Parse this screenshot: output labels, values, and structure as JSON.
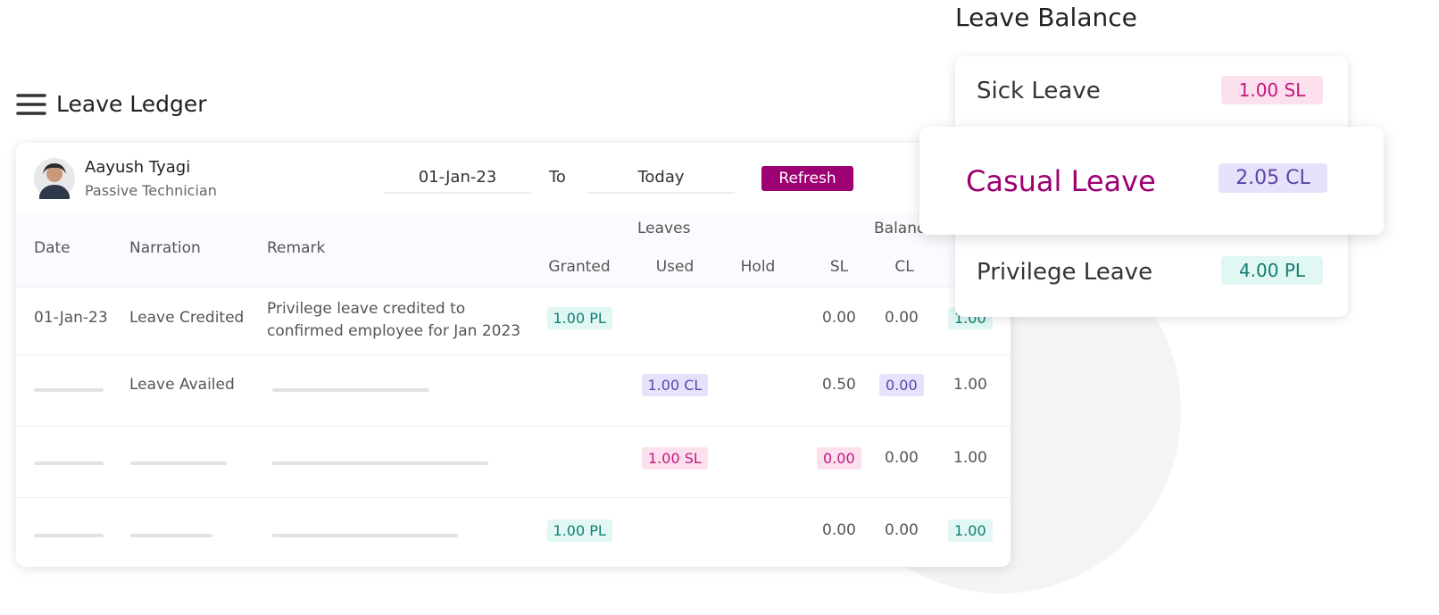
{
  "header": {
    "title": "Leave Ledger"
  },
  "employee": {
    "name": "Aayush Tyagi",
    "role": "Passive Technician"
  },
  "filter": {
    "from": "01-Jan-23",
    "to_label": "To",
    "to": "Today",
    "button": "Refresh"
  },
  "table": {
    "group_headers": {
      "leaves": "Leaves",
      "balance": "Balance"
    },
    "columns": {
      "date": "Date",
      "narration": "Narration",
      "remark": "Remark",
      "granted": "Granted",
      "used": "Used",
      "hold": "Hold",
      "sl": "SL",
      "cl": "CL"
    },
    "rows": [
      {
        "date": "01-Jan-23",
        "narration": "Leave Credited",
        "remark": "Privilege leave credited to confirmed employee for Jan 2023",
        "granted": "1.00 PL",
        "sl": "0.00",
        "cl": "0.00",
        "pl": "1.00"
      },
      {
        "narration": "Leave Availed",
        "used": "1.00 CL",
        "sl": "0.50",
        "cl": "0.00",
        "pl": "1.00"
      },
      {
        "used": "1.00 SL",
        "sl": "0.00",
        "cl": "0.00",
        "pl": "1.00"
      },
      {
        "granted": "1.00 PL",
        "sl": "0.00",
        "cl": "0.00",
        "pl": "1.00"
      }
    ]
  },
  "balance": {
    "title": "Leave Balance",
    "items": [
      {
        "name": "Sick Leave",
        "value": "1.00 SL"
      },
      {
        "name": "Casual Leave",
        "value": "2.05 CL"
      },
      {
        "name": "Privilege Leave",
        "value": "4.00 PL"
      }
    ]
  }
}
